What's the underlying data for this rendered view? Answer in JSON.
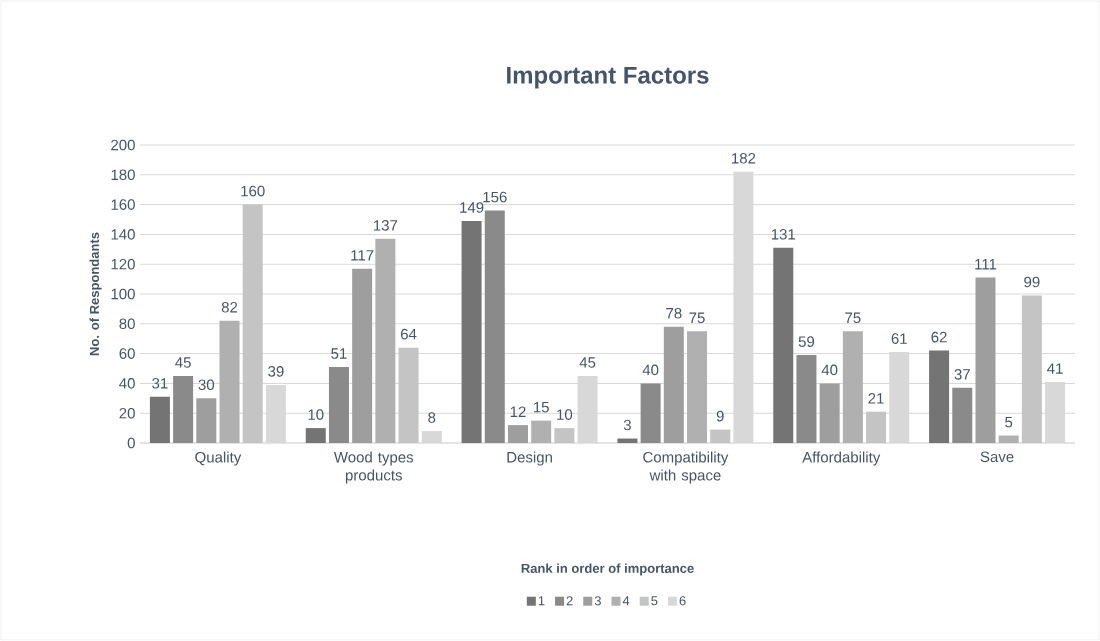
{
  "chart_data": {
    "type": "bar",
    "title": "Important Factors",
    "ylabel": "No. of Respondants",
    "legend_title": "Rank in order of importance",
    "categories": [
      "Quality",
      "Wood types products",
      "Design",
      "Compatibility with space",
      "Affordability",
      "Save"
    ],
    "series": [
      {
        "name": "1",
        "color": "#747474",
        "values": [
          31,
          10,
          149,
          3,
          131,
          62
        ]
      },
      {
        "name": "2",
        "color": "#8a8a8a",
        "values": [
          45,
          51,
          156,
          40,
          59,
          37
        ]
      },
      {
        "name": "3",
        "color": "#9e9e9e",
        "values": [
          30,
          117,
          12,
          78,
          40,
          111
        ]
      },
      {
        "name": "4",
        "color": "#b0b0b0",
        "values": [
          82,
          137,
          15,
          75,
          75,
          5
        ]
      },
      {
        "name": "5",
        "color": "#c4c4c4",
        "values": [
          160,
          64,
          10,
          9,
          21,
          99
        ]
      },
      {
        "name": "6",
        "color": "#d8d8d8",
        "values": [
          39,
          8,
          45,
          182,
          61,
          41
        ]
      }
    ],
    "ylim": [
      0,
      200
    ],
    "yticks": [
      0,
      20,
      40,
      60,
      80,
      100,
      120,
      140,
      160,
      180,
      200
    ],
    "grid": "y",
    "legend": "bottom",
    "data_labels": true
  }
}
